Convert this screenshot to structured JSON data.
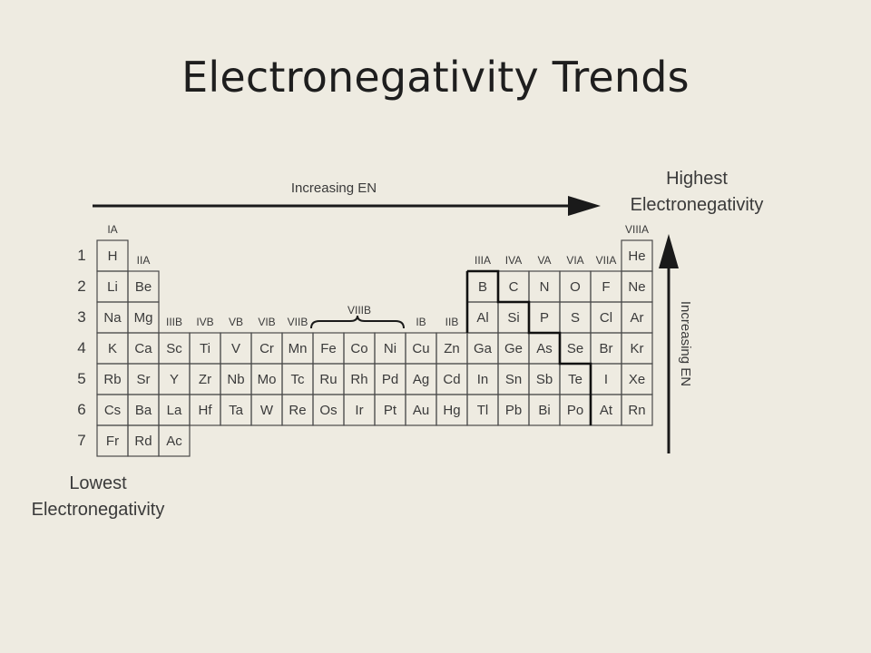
{
  "slide": {
    "title": "Electronegativity Trends"
  },
  "labels": {
    "increasing_en_top": "Increasing EN",
    "increasing_en_side": "Increasing EN",
    "highest_line1": "Highest",
    "highest_line2": "Electronegativity",
    "lowest_line1": "Lowest",
    "lowest_line2": "Electronegativity"
  },
  "periods": [
    "1",
    "2",
    "3",
    "4",
    "5",
    "6",
    "7"
  ],
  "groups": [
    {
      "label": "IA",
      "col": 0,
      "row": 0
    },
    {
      "label": "IIA",
      "col": 1,
      "row": 1
    },
    {
      "label": "IIIB",
      "col": 2,
      "row": 3
    },
    {
      "label": "IVB",
      "col": 3,
      "row": 3
    },
    {
      "label": "VB",
      "col": 4,
      "row": 3
    },
    {
      "label": "VIB",
      "col": 5,
      "row": 3
    },
    {
      "label": "VIIB",
      "col": 6,
      "row": 3
    },
    {
      "label": "IB",
      "col": 10,
      "row": 3
    },
    {
      "label": "IIB",
      "col": 11,
      "row": 3
    },
    {
      "label": "IIIA",
      "col": 12,
      "row": 1
    },
    {
      "label": "IVA",
      "col": 13,
      "row": 1
    },
    {
      "label": "VA",
      "col": 14,
      "row": 1
    },
    {
      "label": "VIA",
      "col": 15,
      "row": 1
    },
    {
      "label": "VIIA",
      "col": 16,
      "row": 1
    },
    {
      "label": "VIIIA",
      "col": 17,
      "row": 0
    }
  ],
  "viiib_label": "VIIIB",
  "rows": [
    [
      "H",
      "",
      "",
      "",
      "",
      "",
      "",
      "",
      "",
      "",
      "",
      "",
      "",
      "",
      "",
      "",
      "",
      "He"
    ],
    [
      "Li",
      "Be",
      "",
      "",
      "",
      "",
      "",
      "",
      "",
      "",
      "",
      "",
      "B",
      "C",
      "N",
      "O",
      "F",
      "Ne"
    ],
    [
      "Na",
      "Mg",
      "",
      "",
      "",
      "",
      "",
      "",
      "",
      "",
      "",
      "",
      "Al",
      "Si",
      "P",
      "S",
      "Cl",
      "Ar"
    ],
    [
      "K",
      "Ca",
      "Sc",
      "Ti",
      "V",
      "Cr",
      "Mn",
      "Fe",
      "Co",
      "Ni",
      "Cu",
      "Zn",
      "Ga",
      "Ge",
      "As",
      "Se",
      "Br",
      "Kr"
    ],
    [
      "Rb",
      "Sr",
      "Y",
      "Zr",
      "Nb",
      "Mo",
      "Tc",
      "Ru",
      "Rh",
      "Pd",
      "Ag",
      "Cd",
      "In",
      "Sn",
      "Sb",
      "Te",
      "I",
      "Xe"
    ],
    [
      "Cs",
      "Ba",
      "La",
      "Hf",
      "Ta",
      "W",
      "Re",
      "Os",
      "Ir",
      "Pt",
      "Au",
      "Hg",
      "Tl",
      "Pb",
      "Bi",
      "Po",
      "At",
      "Rn"
    ],
    [
      "Fr",
      "Rd",
      "Ac",
      "",
      "",
      "",
      "",
      "",
      "",
      "",
      "",
      "",
      "",
      "",
      "",
      "",
      "",
      ""
    ]
  ]
}
